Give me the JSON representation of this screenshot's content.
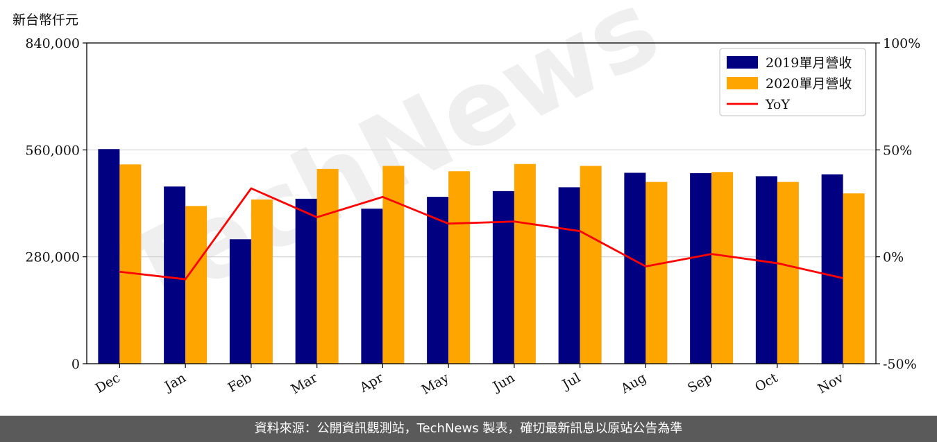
{
  "unit_label": "新台幣仟元",
  "footer": "資料來源：公開資訊觀測站，TechNews 製表，確切最新訊息以原站公告為準",
  "watermark": "TechNews",
  "colors": {
    "series_2019": "#000080",
    "series_2020": "#FFA500",
    "yoy": "#FF0000",
    "grid": "#d0d0d0",
    "footer_bg": "#5a5a5a",
    "watermark": "rgba(210,210,210,0.35)",
    "watermark_red": "rgba(245,185,185,0.35)"
  },
  "chart_data": {
    "type": "bar",
    "categories": [
      "Dec",
      "Jan",
      "Feb",
      "Mar",
      "Apr",
      "May",
      "Jun",
      "Jul",
      "Aug",
      "Sep",
      "Oct",
      "Nov"
    ],
    "series": [
      {
        "name": "2019單月營收",
        "type": "bar",
        "values": [
          562000,
          464000,
          326000,
          432000,
          406000,
          437000,
          452000,
          462000,
          500000,
          499000,
          491000,
          496000
        ]
      },
      {
        "name": "2020單月營收",
        "type": "bar",
        "values": [
          522000,
          413000,
          430000,
          510000,
          518000,
          504000,
          523000,
          518000,
          476000,
          502000,
          476000,
          446000
        ]
      },
      {
        "name": "YoY",
        "type": "line",
        "axis": "right",
        "values": [
          -7,
          -10.5,
          32,
          18.5,
          28,
          15.5,
          16.5,
          12,
          -4.5,
          1.3,
          -3,
          -10
        ]
      }
    ],
    "left_axis": {
      "ylim": [
        0,
        840000
      ],
      "ticks": [
        "0",
        "280,000",
        "560,000",
        "840,000"
      ]
    },
    "right_axis": {
      "ylim": [
        -50,
        100
      ],
      "ticks": [
        "-50%",
        "0%",
        "50%",
        "100%"
      ]
    },
    "grid": "horizontal",
    "legend_position": "top-right"
  }
}
